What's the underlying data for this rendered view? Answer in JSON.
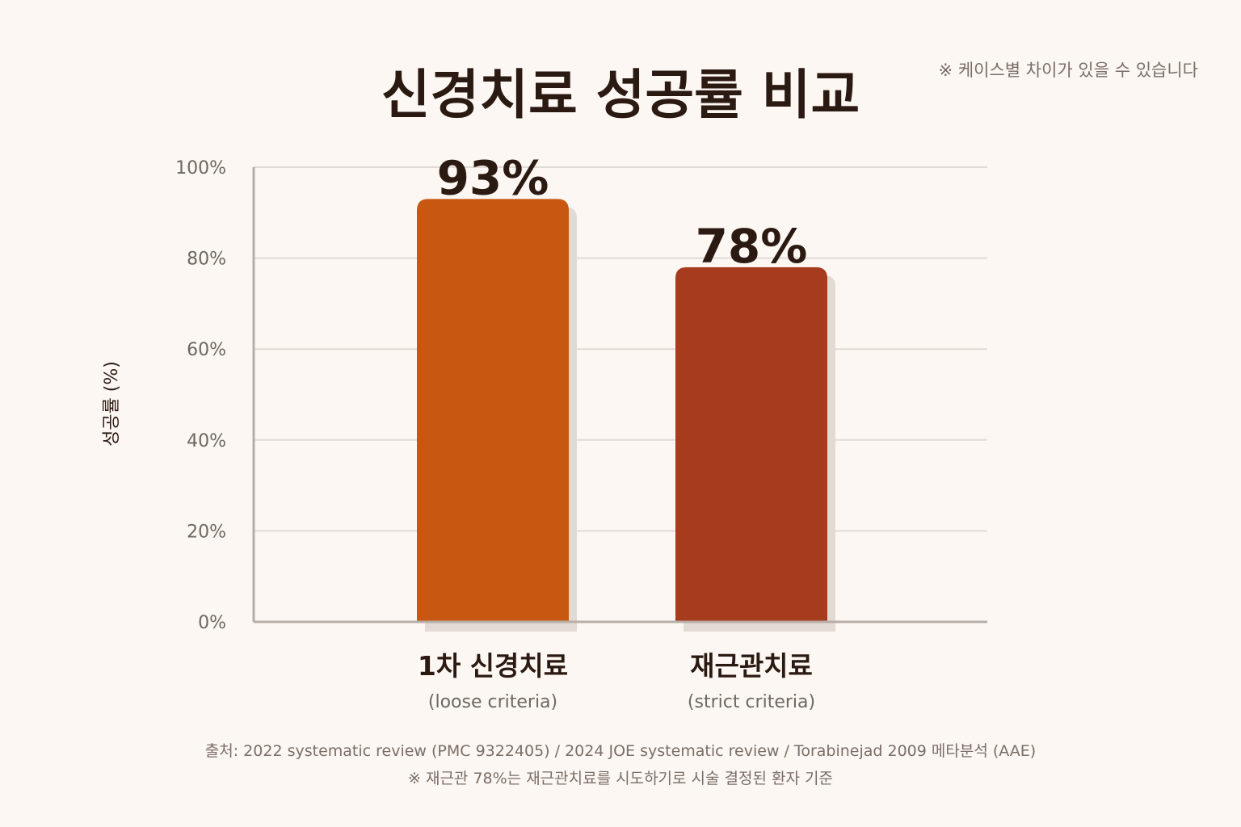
{
  "title": "신경치료 성공률 비교",
  "note_top": "※ 케이스별 차이가 있을 수 있습니다",
  "footer": {
    "source": "출처: 2022 systematic review (PMC 9322405) / 2024 JOE systematic review / Torabinejad 2009 메타분석 (AAE)",
    "note": "※ 재근관 78%는 재근관치료를 시도하기로 시술 결정된 환자 기준"
  },
  "chart_data": {
    "type": "bar",
    "title": "신경치료 성공률 비교",
    "ylabel": "성공률 (%)",
    "ylim": [
      0,
      100
    ],
    "yticks": [
      "0%",
      "20%",
      "40%",
      "60%",
      "80%",
      "100%"
    ],
    "grid": true,
    "categories": [
      "1차 신경치료",
      "재근관치료"
    ],
    "subcategories": [
      "(loose criteria)",
      "(strict criteria)"
    ],
    "values": [
      93,
      78
    ],
    "value_labels": [
      "93%",
      "78%"
    ],
    "colors": [
      "#c85712",
      "#a63b1e"
    ]
  }
}
